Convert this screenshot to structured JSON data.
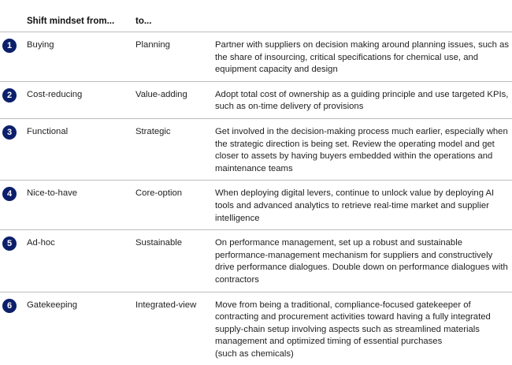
{
  "colors": {
    "accent": "#0b1f6b"
  },
  "header": {
    "from": "Shift mindset from...",
    "to": "to..."
  },
  "rows": [
    {
      "num": "1",
      "from": "Buying",
      "to": "Planning",
      "desc": "Partner with suppliers on decision making around planning issues, such as the share of insourcing, critical specifications for chemical use, and equipment capacity and design"
    },
    {
      "num": "2",
      "from": "Cost-reducing",
      "to": "Value-adding",
      "desc": "Adopt total cost of ownership as a guiding principle and use targeted KPIs, such as on-time delivery of provisions"
    },
    {
      "num": "3",
      "from": "Functional",
      "to": "Strategic",
      "desc": "Get involved in the decision-making process much earlier, especially when the strategic direction is being set. Review the operating model and get closer to assets by having buyers embedded within the operations and maintenance teams"
    },
    {
      "num": "4",
      "from": "Nice-to-have",
      "to": "Core-option",
      "desc": "When deploying digital levers, continue to unlock value by deploying AI tools and advanced analytics to retrieve real-time market and supplier intelligence"
    },
    {
      "num": "5",
      "from": "Ad-hoc",
      "to": "Sustainable",
      "desc": "On performance management, set up a robust and sustainable performance-management mechanism for suppliers and constructively drive performance dialogues. Double down on performance dialogues with contractors"
    },
    {
      "num": "6",
      "from": "Gatekeeping",
      "to": "Integrated-view",
      "desc": "Move from being a traditional, compliance-focused gatekeeper of contracting and procurement activities toward having a fully integrated supply-chain setup involving aspects such as streamlined materials management and optimized timing of essential purchases\n(such as chemicals)"
    }
  ]
}
